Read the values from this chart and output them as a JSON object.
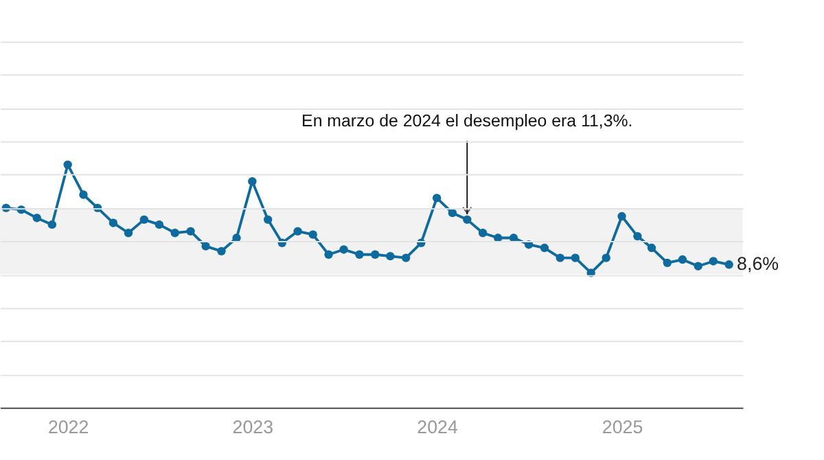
{
  "chart_data": {
    "type": "line",
    "x": [
      "2021-09",
      "2021-10",
      "2021-11",
      "2021-12",
      "2022-01",
      "2022-02",
      "2022-03",
      "2022-04",
      "2022-05",
      "2022-06",
      "2022-07",
      "2022-08",
      "2022-09",
      "2022-10",
      "2022-11",
      "2022-12",
      "2023-01",
      "2023-02",
      "2023-03",
      "2023-04",
      "2023-05",
      "2023-06",
      "2023-07",
      "2023-08",
      "2023-09",
      "2023-10",
      "2023-11",
      "2023-12",
      "2024-01",
      "2024-02",
      "2024-03",
      "2024-04",
      "2024-05",
      "2024-06",
      "2024-07",
      "2024-08",
      "2024-09",
      "2024-10",
      "2024-11",
      "2024-12",
      "2025-01",
      "2025-02",
      "2025-03",
      "2025-04",
      "2025-05",
      "2025-06",
      "2025-07",
      "2025-08"
    ],
    "series": [
      {
        "color": "#0f6b9d",
        "values": [
          12.0,
          11.9,
          11.4,
          11.0,
          14.6,
          12.8,
          12.0,
          11.1,
          10.5,
          11.3,
          11.0,
          10.5,
          10.6,
          9.7,
          9.4,
          10.2,
          13.6,
          11.3,
          9.9,
          10.6,
          10.4,
          9.2,
          9.5,
          9.2,
          9.2,
          9.1,
          9.0,
          9.9,
          12.6,
          11.7,
          11.3,
          10.5,
          10.2,
          10.2,
          9.8,
          9.6,
          9.0,
          9.0,
          8.1,
          9.0,
          11.5,
          10.3,
          9.6,
          8.7,
          8.9,
          8.5,
          8.8,
          8.6
        ],
        "value_labels": [
          null,
          null,
          null,
          null,
          null,
          null,
          null,
          null,
          null,
          null,
          null,
          null,
          null,
          null,
          null,
          null,
          null,
          null,
          null,
          null,
          null,
          null,
          null,
          null,
          null,
          null,
          null,
          null,
          null,
          null,
          null,
          null,
          null,
          null,
          null,
          null,
          null,
          null,
          null,
          null,
          null,
          null,
          null,
          null,
          null,
          null,
          null,
          "8,6%"
        ]
      }
    ],
    "xlim": [
      "2021-08-20",
      "2025-08-28"
    ],
    "xticks": [
      "2022",
      "2023",
      "2024",
      "2025"
    ],
    "ylim": [
      0,
      22
    ],
    "yticks": [
      {
        "value": 2,
        "label": null
      },
      {
        "value": 4,
        "label": null
      },
      {
        "value": 6,
        "label": null
      },
      {
        "value": 8,
        "label": null
      },
      {
        "value": 10,
        "label": null
      },
      {
        "value": 12,
        "label": null
      },
      {
        "value": 14,
        "label": null
      },
      {
        "value": 16,
        "label": null
      },
      {
        "value": 18,
        "label": null
      },
      {
        "value": 20,
        "label": null
      },
      {
        "value": 22,
        "label": null
      }
    ],
    "tick_labels": "x",
    "grid": "y",
    "marker": "circle",
    "line_style": "solid",
    "bands": [
      {
        "axis": "y",
        "from": 8,
        "to": 12,
        "color": "#f2f2f2"
      }
    ],
    "annotations": [
      {
        "text": "En marzo de 2024 el desempleo era 11,3%.",
        "x": "2024-03",
        "y": 11.3
      }
    ]
  }
}
